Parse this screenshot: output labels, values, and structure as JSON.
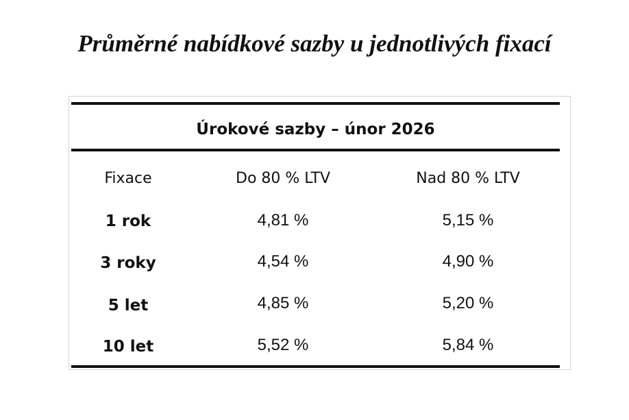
{
  "page": {
    "title": "Průměrné nabídkové sazby u jednotlivých fixací"
  },
  "table": {
    "caption": "Úrokové sazby – únor 2026",
    "headers": [
      "Fixace",
      "Do 80 % LTV",
      "Nad 80 % LTV"
    ],
    "rows": [
      {
        "fixace": "1 rok",
        "do80": "4,81 %",
        "nad80": "5,15 %"
      },
      {
        "fixace": "3 roky",
        "do80": "4,54 %",
        "nad80": "4,90 %"
      },
      {
        "fixace": "5 let",
        "do80": "4,85 %",
        "nad80": "5,20 %"
      },
      {
        "fixace": "10 let",
        "do80": "5,52 %",
        "nad80": "5,84 %"
      }
    ]
  },
  "colors": {
    "text": "#111111",
    "rule": "#111111",
    "frame_border": "#d4d4d4",
    "background": "#ffffff"
  }
}
